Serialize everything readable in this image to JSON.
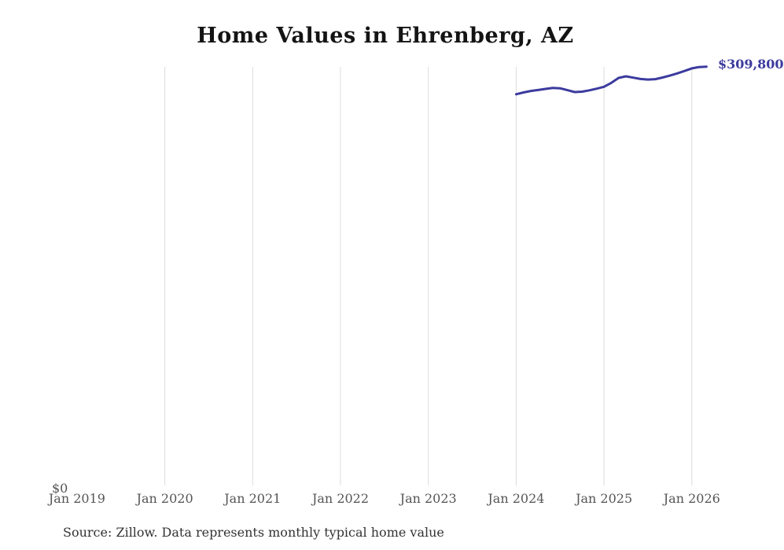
{
  "title": "Home Values in Ehrenberg, AZ",
  "source_note": "Source: Zillow. Data represents monthly typical home value",
  "y_zero_label": "$0",
  "end_value_label": "$309,800",
  "colors": {
    "line": "#3b3b9e",
    "grid": "#dcdcdc",
    "axis_text": "#555555",
    "title_text": "#141414",
    "source_text": "#333333",
    "end_label_text": "#3b3b9e",
    "background": "#ffffff"
  },
  "chart_data": {
    "type": "line",
    "title": "Home Values in Ehrenberg, AZ",
    "xlabel": "",
    "ylabel": "",
    "x_tick_labels": [
      "Jan 2019",
      "Jan 2020",
      "Jan 2021",
      "Jan 2022",
      "Jan 2023",
      "Jan 2024",
      "Jan 2025",
      "Jan 2026"
    ],
    "grid": "vertical-only",
    "gridlines_at": [
      "Jan 2020",
      "Jan 2021",
      "Jan 2022",
      "Jan 2023",
      "Jan 2024",
      "Jan 2025",
      "Jan 2026"
    ],
    "ylim": [
      0,
      340000
    ],
    "y_axis_labels_visible": [
      "$0"
    ],
    "legend": "none",
    "series": [
      {
        "name": "Monthly typical home value",
        "start_label": "Jan 2024",
        "start_month_index": 60,
        "frequency": "monthly",
        "values": [
          289500,
          290800,
          291900,
          292600,
          293400,
          294100,
          293900,
          292500,
          291100,
          291400,
          292400,
          293600,
          295000,
          297900,
          301500,
          302700,
          301700,
          300700,
          300300,
          300600,
          301800,
          303200,
          304800,
          306600,
          308500,
          309500,
          309800
        ]
      }
    ],
    "end_annotation": "$309,800"
  }
}
